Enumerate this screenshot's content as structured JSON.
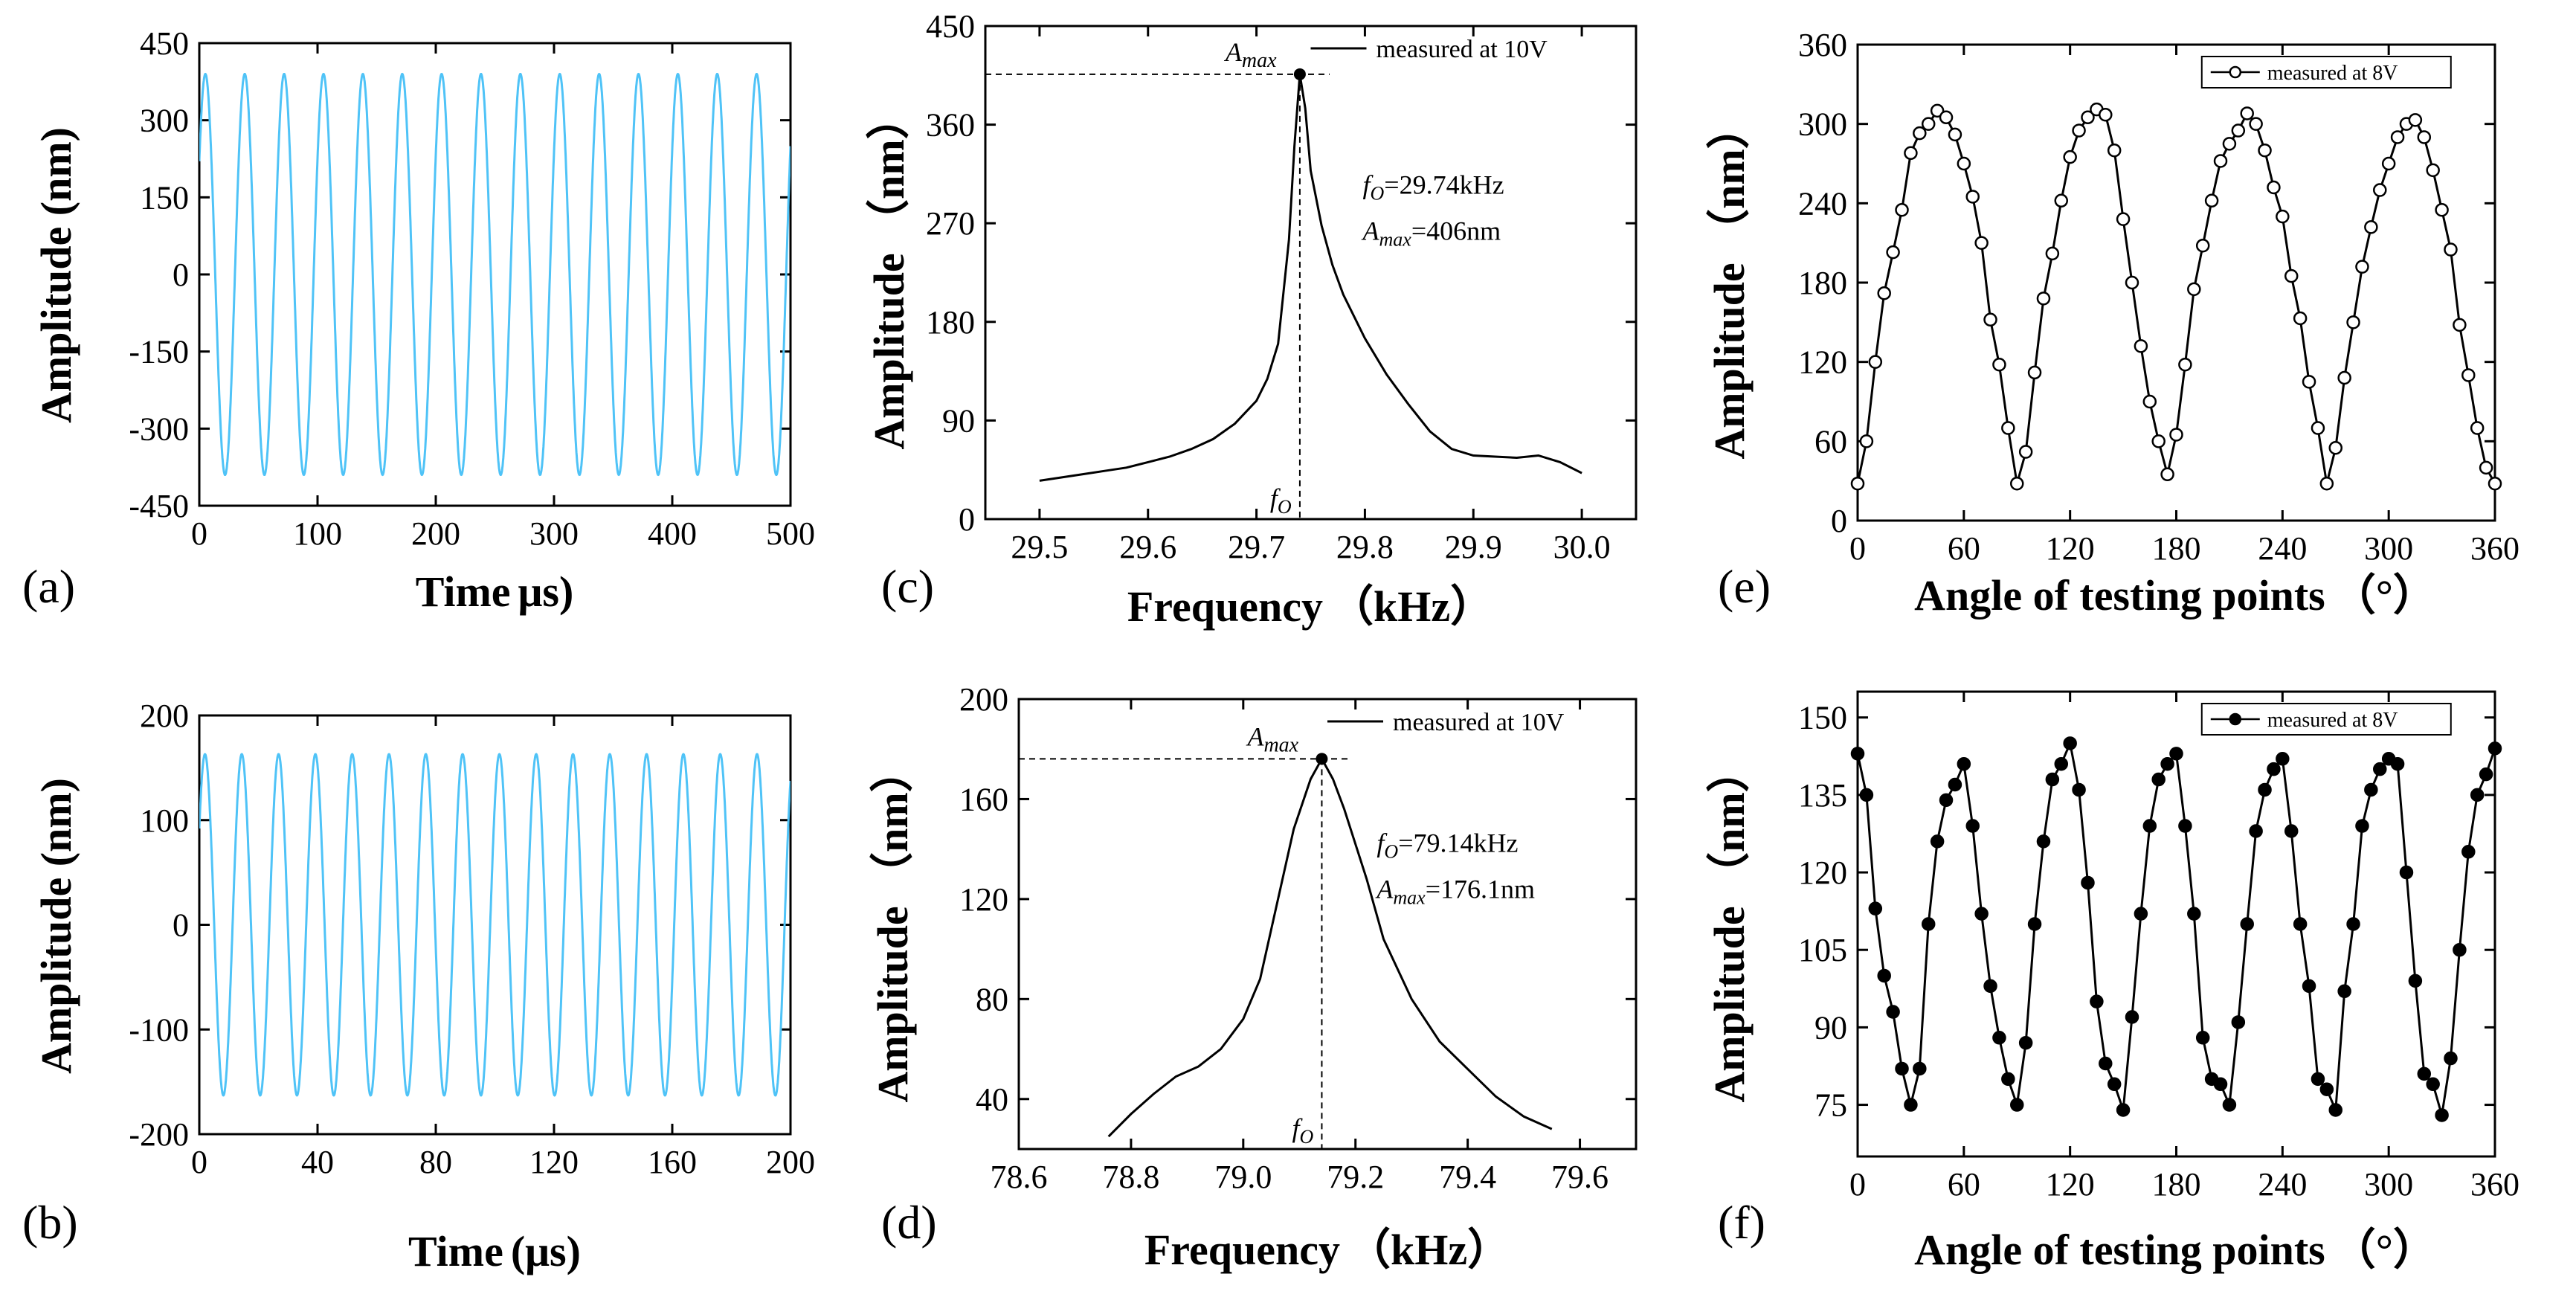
{
  "chart_data": [
    {
      "id": "a",
      "panel_label": "(a)",
      "type": "line",
      "signal": "sine",
      "amplitude": 390,
      "period": 33.3,
      "color": "#4fc3f7",
      "xlabel_main": "Time",
      "xlabel_unit": "μs)",
      "ylabel": "Amplitude (nm)",
      "xlim": [
        0,
        500
      ],
      "ylim": [
        -450,
        450
      ],
      "xticks": [
        "0",
        "100",
        "200",
        "300",
        "400",
        "500"
      ],
      "yticks": [
        "-450",
        "-300",
        "-150",
        "0",
        "150",
        "300",
        "450"
      ]
    },
    {
      "id": "b",
      "panel_label": "(b)",
      "type": "line",
      "signal": "sine",
      "amplitude": 163,
      "period": 12.45,
      "color": "#4fc3f7",
      "xlabel_main": "Time",
      "xlabel_unit": "(μs)",
      "ylabel": "Amplitude (nm)",
      "xlim": [
        0,
        200
      ],
      "ylim": [
        -200,
        200
      ],
      "xticks": [
        "0",
        "40",
        "80",
        "120",
        "160",
        "200"
      ],
      "yticks": [
        "-200",
        "-100",
        "0",
        "100",
        "200"
      ]
    },
    {
      "id": "c",
      "panel_label": "(c)",
      "type": "line",
      "color": "#000000",
      "xlabel_main": "Frequency",
      "xlabel_unit": "（kHz）",
      "ylabel": "Amplitude （nm）",
      "xlim": [
        29.45,
        30.05
      ],
      "ylim": [
        0,
        450
      ],
      "xticks": [
        "29.5",
        "29.6",
        "29.7",
        "29.8",
        "29.9",
        "30.0"
      ],
      "yticks": [
        "0",
        "90",
        "180",
        "270",
        "360",
        "450"
      ],
      "x": [
        29.5,
        29.52,
        29.54,
        29.56,
        29.58,
        29.6,
        29.62,
        29.64,
        29.66,
        29.68,
        29.7,
        29.71,
        29.72,
        29.73,
        29.735,
        29.74,
        29.745,
        29.75,
        29.76,
        29.77,
        29.78,
        29.8,
        29.82,
        29.84,
        29.86,
        29.88,
        29.9,
        29.92,
        29.94,
        29.96,
        29.98,
        30.0
      ],
      "y": [
        35,
        38,
        41,
        44,
        47,
        52,
        57,
        64,
        73,
        87,
        108,
        128,
        160,
        255,
        340,
        406,
        375,
        318,
        268,
        232,
        205,
        165,
        132,
        105,
        80,
        64,
        58,
        57,
        56,
        58,
        52,
        42
      ],
      "peak": {
        "x": 29.74,
        "y": 406
      },
      "legend": "measured at 10V",
      "ann_f": "=29.74kHz",
      "ann_a": "=406nm",
      "amax_label": "A",
      "amax_sub": "max",
      "fo_label": "f",
      "fo_sub": "O"
    },
    {
      "id": "d",
      "panel_label": "(d)",
      "type": "line",
      "color": "#000000",
      "xlabel_main": "Frequency",
      "xlabel_unit": "（kHz）",
      "ylabel": "Amplitude （nm）",
      "xlim": [
        78.6,
        79.7
      ],
      "ylim": [
        20,
        200
      ],
      "xticks": [
        "78.6",
        "78.8",
        "79.0",
        "79.2",
        "79.4",
        "79.6"
      ],
      "yticks": [
        "40",
        "80",
        "120",
        "160",
        "200"
      ],
      "x": [
        78.76,
        78.8,
        78.84,
        78.88,
        78.92,
        78.96,
        79.0,
        79.03,
        79.06,
        79.09,
        79.12,
        79.14,
        79.16,
        79.18,
        79.2,
        79.22,
        79.25,
        79.3,
        79.35,
        79.4,
        79.45,
        79.5,
        79.55
      ],
      "y": [
        25,
        34,
        42,
        49,
        53,
        60,
        72,
        88,
        118,
        148,
        168,
        176.1,
        168,
        156,
        142,
        128,
        104,
        80,
        63,
        52,
        41,
        33,
        28
      ],
      "peak": {
        "x": 79.14,
        "y": 176.1
      },
      "legend": "measured at 10V",
      "ann_f": "=79.14kHz",
      "ann_a": "=176.1nm",
      "amax_label": "A",
      "amax_sub": "max",
      "fo_label": "f",
      "fo_sub": "O"
    },
    {
      "id": "e",
      "panel_label": "(e)",
      "type": "line",
      "marker": "open-circle",
      "color": "#000000",
      "xlabel_main": "Angle of testing points",
      "xlabel_unit": "（°）",
      "ylabel": "Amplitude （nm）",
      "xlim": [
        0,
        360
      ],
      "ylim": [
        0,
        360
      ],
      "xticks": [
        "0",
        "60",
        "120",
        "180",
        "240",
        "300",
        "360"
      ],
      "yticks": [
        "0",
        "60",
        "120",
        "180",
        "240",
        "300",
        "360"
      ],
      "x": [
        0,
        5,
        10,
        15,
        20,
        25,
        30,
        35,
        40,
        45,
        50,
        55,
        60,
        65,
        70,
        75,
        80,
        85,
        90,
        95,
        100,
        105,
        110,
        115,
        120,
        125,
        130,
        135,
        140,
        145,
        150,
        155,
        160,
        165,
        170,
        175,
        180,
        185,
        190,
        195,
        200,
        205,
        210,
        215,
        220,
        225,
        230,
        235,
        240,
        245,
        250,
        255,
        260,
        265,
        270,
        275,
        280,
        285,
        290,
        295,
        300,
        305,
        310,
        315,
        320,
        325,
        330,
        335,
        340,
        345,
        350,
        355,
        360
      ],
      "y": [
        28,
        60,
        120,
        172,
        203,
        235,
        278,
        293,
        300,
        310,
        305,
        292,
        270,
        245,
        210,
        152,
        118,
        70,
        28,
        52,
        112,
        168,
        202,
        242,
        275,
        295,
        305,
        311,
        307,
        280,
        228,
        180,
        132,
        90,
        60,
        35,
        65,
        118,
        175,
        208,
        242,
        272,
        285,
        295,
        308,
        300,
        280,
        252,
        230,
        185,
        153,
        105,
        70,
        28,
        55,
        108,
        150,
        192,
        222,
        250,
        270,
        290,
        300,
        303,
        290,
        265,
        235,
        205,
        148,
        110,
        70,
        40,
        28
      ],
      "legend": "measured at 8V"
    },
    {
      "id": "f",
      "panel_label": "(f)",
      "type": "line",
      "marker": "filled-circle",
      "color": "#000000",
      "xlabel_main": "Angle of testing points",
      "xlabel_unit": "（°）",
      "ylabel": "Amplitude （nm）",
      "xlim": [
        0,
        360
      ],
      "ylim": [
        65,
        155
      ],
      "xticks": [
        "0",
        "60",
        "120",
        "180",
        "240",
        "300",
        "360"
      ],
      "yticks": [
        "75",
        "90",
        "105",
        "120",
        "135",
        "150"
      ],
      "x": [
        0,
        5,
        10,
        15,
        20,
        25,
        30,
        35,
        40,
        45,
        50,
        55,
        60,
        65,
        70,
        75,
        80,
        85,
        90,
        95,
        100,
        105,
        110,
        115,
        120,
        125,
        130,
        135,
        140,
        145,
        150,
        155,
        160,
        165,
        170,
        175,
        180,
        185,
        190,
        195,
        200,
        205,
        210,
        215,
        220,
        225,
        230,
        235,
        240,
        245,
        250,
        255,
        260,
        265,
        270,
        275,
        280,
        285,
        290,
        295,
        300,
        305,
        310,
        315,
        320,
        325,
        330,
        335,
        340,
        345,
        350,
        355,
        360
      ],
      "y": [
        143,
        135,
        113,
        100,
        93,
        82,
        75,
        82,
        110,
        126,
        134,
        137,
        141,
        129,
        112,
        98,
        88,
        80,
        75,
        87,
        110,
        126,
        138,
        141,
        145,
        136,
        118,
        95,
        83,
        79,
        74,
        92,
        112,
        129,
        138,
        141,
        143,
        129,
        112,
        88,
        80,
        79,
        75,
        91,
        110,
        128,
        136,
        140,
        142,
        128,
        110,
        98,
        80,
        78,
        74,
        97,
        110,
        129,
        136,
        140,
        142,
        141,
        120,
        99,
        81,
        79,
        73,
        84,
        105,
        124,
        135,
        139,
        144
      ],
      "legend": "measured at 8V"
    }
  ]
}
